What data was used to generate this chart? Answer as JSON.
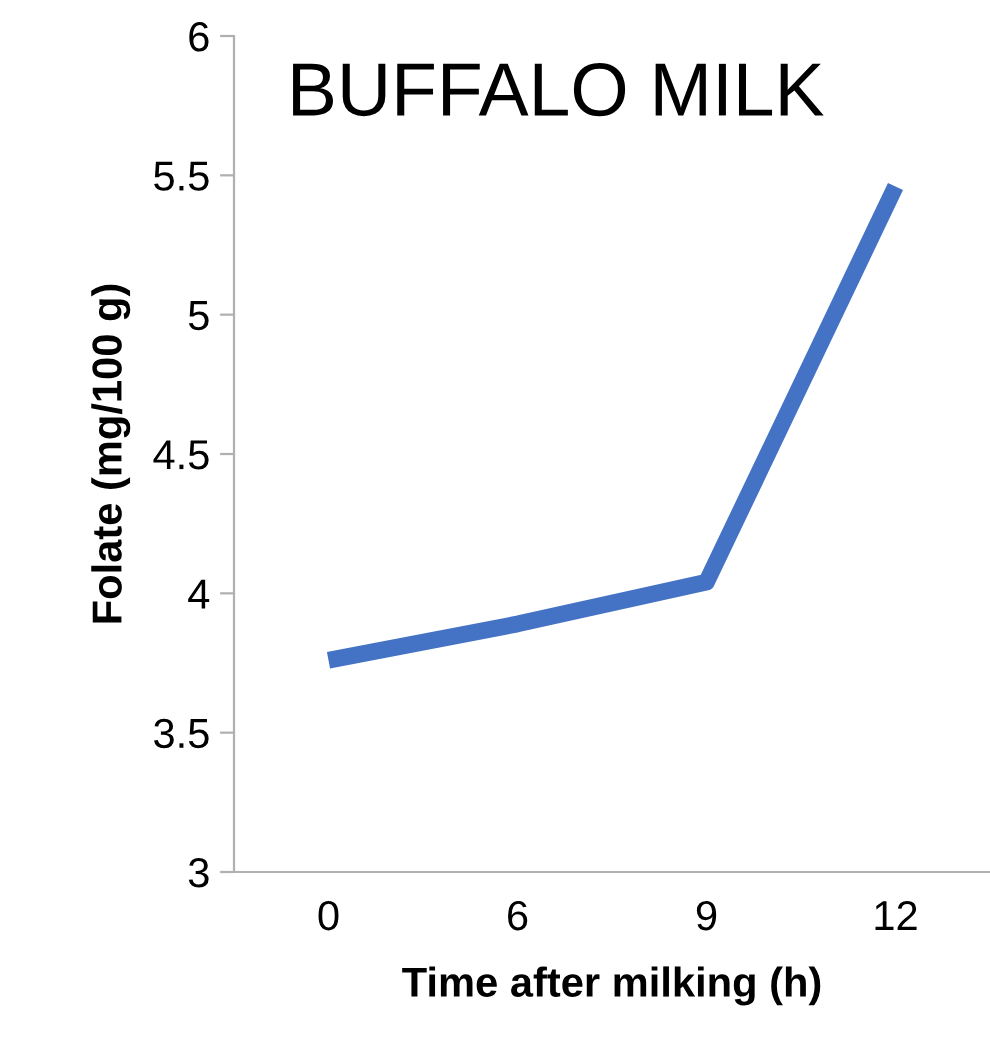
{
  "chart_data": {
    "type": "line",
    "title": "BUFFALO MILK",
    "xlabel": "Time after milking (h)",
    "ylabel": "Folate (mg/100 g)",
    "categories": [
      "0",
      "6",
      "9",
      "12"
    ],
    "series": [
      {
        "color": "#4472c4",
        "values": [
          3.76,
          3.89,
          4.04,
          5.46
        ]
      }
    ],
    "ylim": [
      3,
      6
    ],
    "yticks": [
      3,
      3.5,
      4,
      4.5,
      5,
      5.5,
      6
    ],
    "grid": false,
    "legend": false,
    "marker": "none",
    "line_style": "solid"
  }
}
